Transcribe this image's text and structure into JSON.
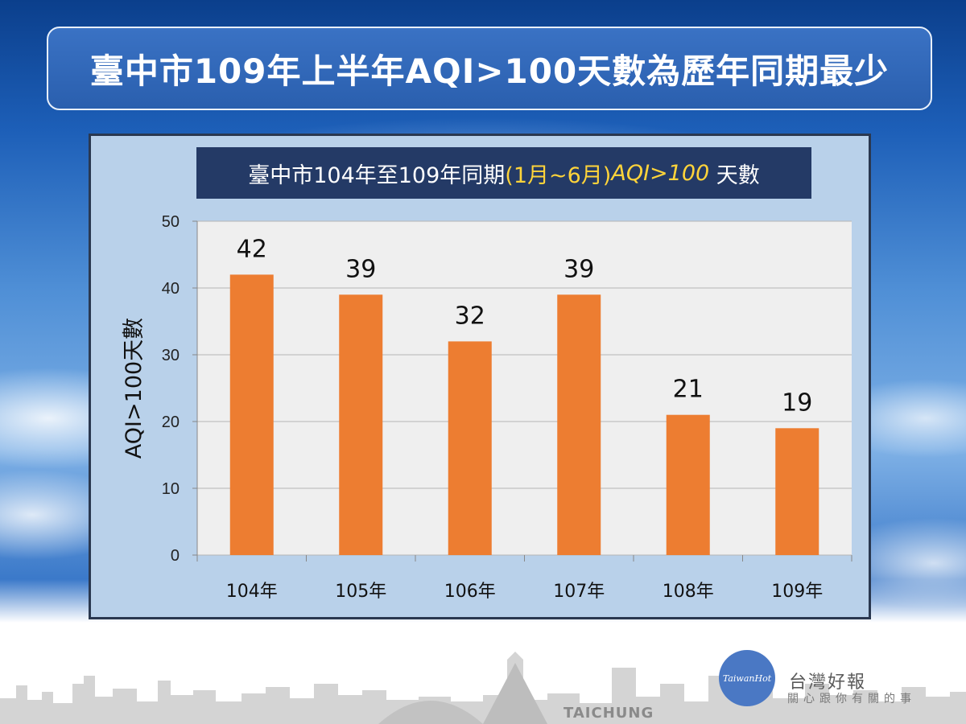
{
  "slide_title": "臺中市109年上半年AQI>100天數為歷年同期最少",
  "chart_data": {
    "type": "bar",
    "title_parts": {
      "prefix": "臺中市104年至109年同期",
      "period": "(1月~6月)",
      "metric": "AQI>100",
      "suffix": " 天數"
    },
    "categories": [
      "104年",
      "105年",
      "106年",
      "107年",
      "108年",
      "109年"
    ],
    "values": [
      42,
      39,
      32,
      39,
      21,
      19
    ],
    "data_labels": [
      "42",
      "39",
      "32",
      "39",
      "21",
      "19"
    ],
    "xlabel": "",
    "ylabel": "AQI>100天數",
    "ylim": [
      0,
      50
    ],
    "yticks": [
      "0",
      "10",
      "20",
      "30",
      "40",
      "50"
    ],
    "grid": true,
    "legend": "none",
    "bar_color": "#ed7d31"
  },
  "footer": {
    "city_label": "TAICHUNG",
    "logo_badge": "TaiwanHot",
    "logo_name": "台灣好報",
    "logo_slogan": "關心跟你有關的事"
  },
  "colors": {
    "title_bg": "#2a5fae",
    "subtitle_bg": "#243a66",
    "highlight": "#ffd43a",
    "plot_bg": "#efefef",
    "gridline": "#b5b5b5"
  }
}
